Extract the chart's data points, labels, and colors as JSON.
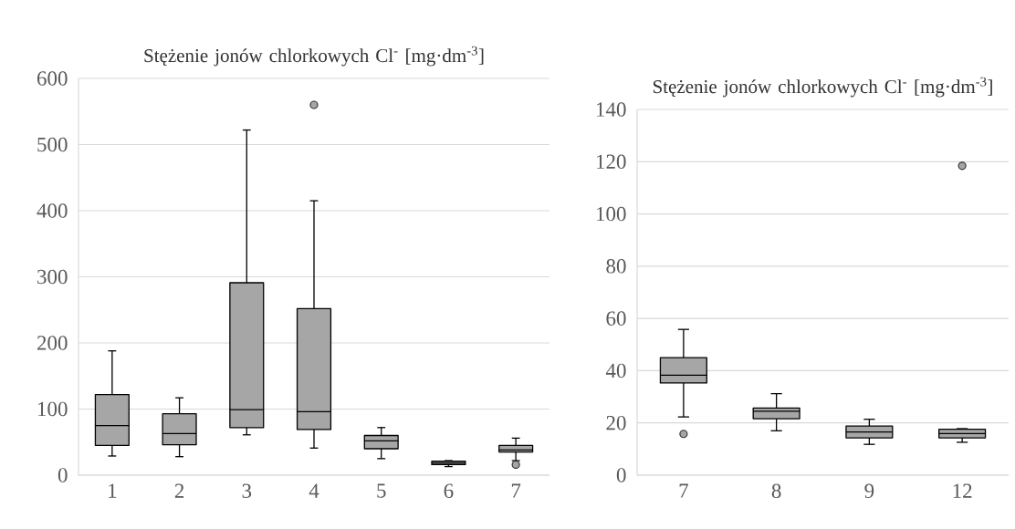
{
  "chart_data": [
    {
      "type": "box",
      "title": "Stężenie jonów chlorkowych Cl$^{-}$ [mg·dm$^{-3}$]",
      "categories": [
        "1",
        "2",
        "3",
        "4",
        "5",
        "6",
        "7"
      ],
      "ylim": [
        0,
        600
      ],
      "yticks": [
        0,
        100,
        200,
        300,
        400,
        500,
        600
      ],
      "grid": "y",
      "series": [
        {
          "color": "#a6a6a6",
          "boxes": [
            {
              "low": 29,
              "q1": 45,
              "median": 75,
              "q3": 122,
              "high": 188
            },
            {
              "low": 28,
              "q1": 46,
              "median": 63,
              "q3": 93,
              "high": 117
            },
            {
              "low": 61,
              "q1": 72,
              "median": 99,
              "q3": 291,
              "high": 522
            },
            {
              "low": 41,
              "q1": 69,
              "median": 96,
              "q3": 252,
              "high": 415,
              "outliers": [
                560
              ]
            },
            {
              "low": 25,
              "q1": 40,
              "median": 52,
              "q3": 60,
              "high": 72
            },
            {
              "low": 13,
              "q1": 16,
              "median": 18,
              "q3": 21,
              "high": 22
            },
            {
              "low": 22,
              "q1": 35,
              "median": 38,
              "q3": 45,
              "high": 56,
              "outliers": [
                16
              ]
            }
          ]
        }
      ]
    },
    {
      "type": "box",
      "title": "Stężenie jonów chlorkowych Cl$^{-}$ [mg·dm$^{-3}$]",
      "categories": [
        "7",
        "8",
        "9",
        "12"
      ],
      "ylim": [
        0,
        140
      ],
      "yticks": [
        0,
        20,
        40,
        60,
        80,
        100,
        120,
        140
      ],
      "grid": "y",
      "series": [
        {
          "color": "#a6a6a6",
          "boxes": [
            {
              "low": 22.3,
              "q1": 35.3,
              "median": 38.3,
              "q3": 45,
              "high": 55.8,
              "outliers": [
                15.8
              ]
            },
            {
              "low": 17,
              "q1": 21.6,
              "median": 24.5,
              "q3": 25.7,
              "high": 31.2
            },
            {
              "low": 11.8,
              "q1": 14.3,
              "median": 16.5,
              "q3": 18.8,
              "high": 21.4
            },
            {
              "low": 12.6,
              "q1": 14.3,
              "median": 15.9,
              "q3": 17.6,
              "high": 17.8,
              "outliers": [
                118.4
              ]
            }
          ]
        }
      ]
    }
  ]
}
